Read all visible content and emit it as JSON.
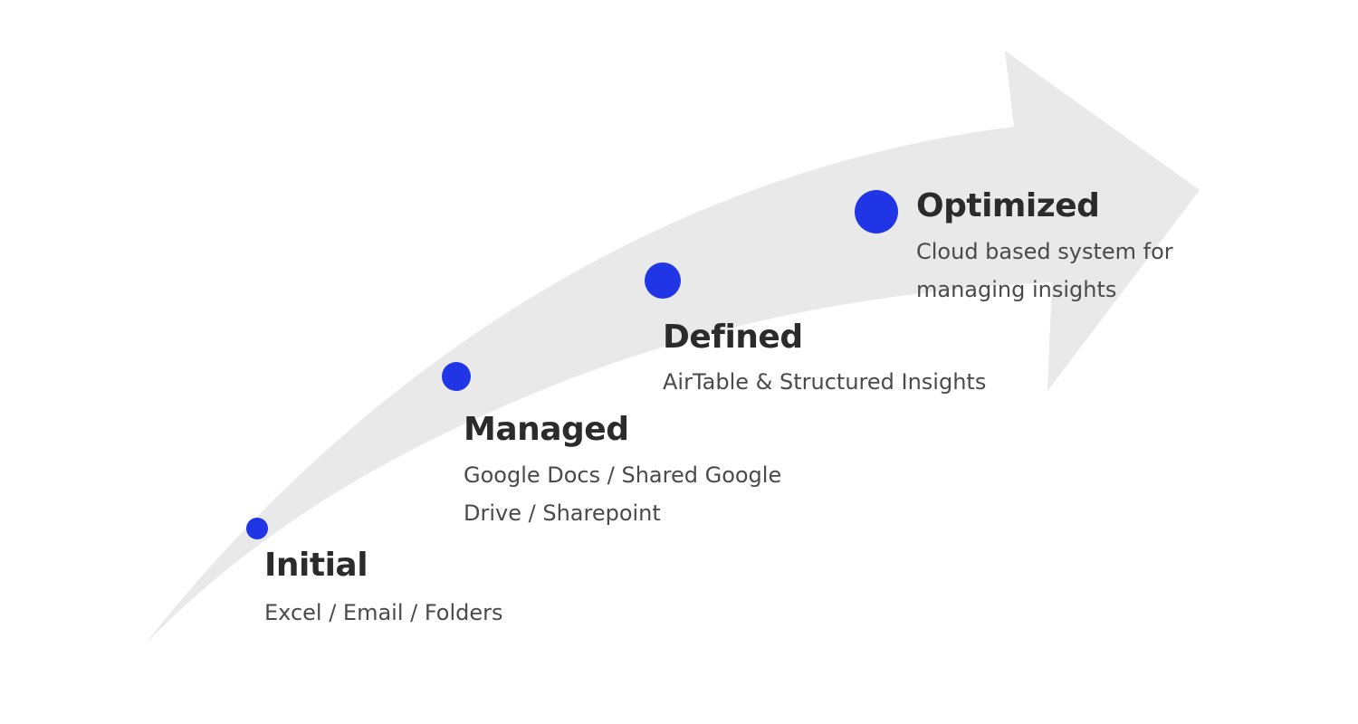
{
  "colors": {
    "arrow": "#e9e9e9",
    "dot": "#1f35e6",
    "title": "#2b2b2b",
    "description": "#4a4a4a"
  },
  "stages": [
    {
      "title": "Initial",
      "description": "Excel / Email / Folders"
    },
    {
      "title": "Managed",
      "description": "Google Docs / Shared Google Drive / Sharepoint"
    },
    {
      "title": "Defined",
      "description": "AirTable & Structured Insights"
    },
    {
      "title": "Optimized",
      "description": "Cloud based system for managing insights"
    }
  ]
}
